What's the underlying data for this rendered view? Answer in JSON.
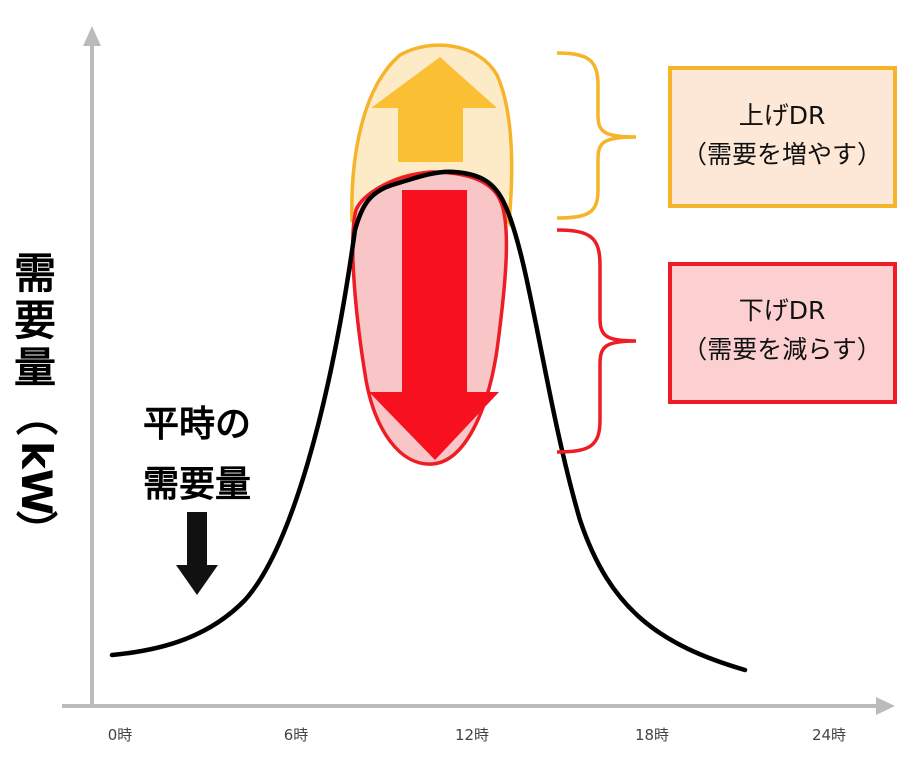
{
  "axes": {
    "y_label_chars": [
      "需",
      "要",
      "量",
      "（",
      "k",
      "W",
      "）"
    ],
    "x_ticks": [
      "0時",
      "6時",
      "12時",
      "18時",
      "24時"
    ]
  },
  "baseline_note": {
    "lines": [
      "平時の",
      "需要量"
    ]
  },
  "legend": {
    "up": {
      "line1": "上げDR",
      "line2": "（需要を増やす）",
      "color": "#f5b42a",
      "fill": "#fde8d8"
    },
    "down": {
      "line1": "下げDR",
      "line2": "（需要を減らす）",
      "color": "#ee1c25",
      "fill": "#fcd0d0"
    }
  },
  "colors": {
    "axis": "#bbbbbb",
    "curve": "#000000",
    "up_arrow": "#fbbf33",
    "up_region": "#fdebc8",
    "down_arrow": "#f7101d",
    "down_region": "#f9c6c8"
  }
}
